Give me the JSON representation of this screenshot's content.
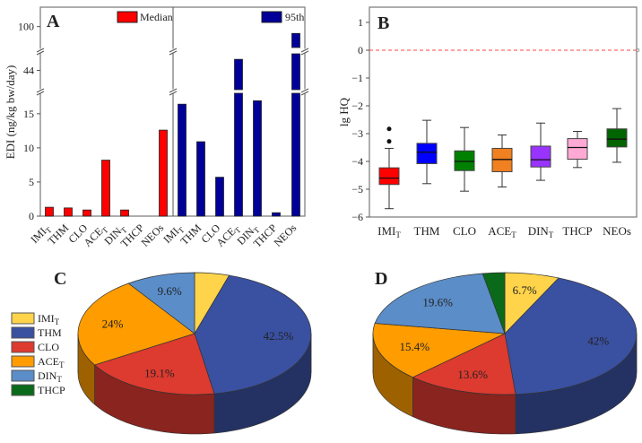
{
  "chart_data": [
    {
      "panel": "A",
      "type": "bar",
      "ylabel": "EDI (ng/kg bw/day)",
      "categories": [
        {
          "name": "IMI",
          "sub": "T"
        },
        {
          "name": "THM",
          "sub": ""
        },
        {
          "name": "CLO",
          "sub": ""
        },
        {
          "name": "ACE",
          "sub": "T"
        },
        {
          "name": "DIN",
          "sub": "T"
        },
        {
          "name": "THCP",
          "sub": ""
        },
        {
          "name": "NEOs",
          "sub": ""
        }
      ],
      "y_ticks": [
        0,
        5,
        10,
        15,
        44,
        100
      ],
      "y_axis_break_segments": [
        [
          0,
          18
        ],
        [
          30,
          56
        ],
        [
          90,
          105
        ]
      ],
      "series": [
        {
          "name": "Median",
          "color": "#ff0000",
          "values": [
            1.3,
            1.2,
            0.9,
            8.2,
            0.9,
            0,
            12.6
          ]
        },
        {
          "name": "95th",
          "color": "#000099",
          "values": [
            16.4,
            10.9,
            5.7,
            52,
            16.9,
            0.5,
            97
          ]
        }
      ],
      "legend": "top-right of each half"
    },
    {
      "panel": "B",
      "type": "box",
      "ylabel": "lg HQ",
      "ylim": [
        -6,
        1.5
      ],
      "y_ticks": [
        1,
        0,
        -1,
        -2,
        -3,
        -4,
        -5,
        -6
      ],
      "reference_line": {
        "y": 0,
        "color": "#ff4444",
        "style": "dashed"
      },
      "categories": [
        {
          "name": "IMI",
          "sub": "T"
        },
        {
          "name": "THM",
          "sub": ""
        },
        {
          "name": "CLO",
          "sub": ""
        },
        {
          "name": "ACE",
          "sub": "T"
        },
        {
          "name": "DIN",
          "sub": "T"
        },
        {
          "name": "THCP",
          "sub": ""
        },
        {
          "name": "NEOs",
          "sub": ""
        }
      ],
      "boxes": [
        {
          "color": "#ff0000",
          "min": -5.7,
          "q1": -4.83,
          "median": -4.6,
          "q3": -4.23,
          "max": -3.53,
          "outliers": [
            -3.28,
            -2.83
          ]
        },
        {
          "color": "#0000ff",
          "min": -4.8,
          "q1": -4.08,
          "median": -3.67,
          "q3": -3.35,
          "max": -2.52,
          "outliers": []
        },
        {
          "color": "#008000",
          "min": -5.07,
          "q1": -4.33,
          "median": -4.0,
          "q3": -3.62,
          "max": -2.78,
          "outliers": []
        },
        {
          "color": "#f08020",
          "min": -4.92,
          "q1": -4.37,
          "median": -3.93,
          "q3": -3.53,
          "max": -3.05,
          "outliers": []
        },
        {
          "color": "#9933ff",
          "min": -4.68,
          "q1": -4.2,
          "median": -3.94,
          "q3": -3.45,
          "max": -2.62,
          "outliers": []
        },
        {
          "color": "#ffaad4",
          "min": -4.22,
          "q1": -3.92,
          "median": -3.5,
          "q3": -3.18,
          "max": -2.92,
          "outliers": []
        },
        {
          "color": "#006400",
          "min": -4.03,
          "q1": -3.48,
          "median": -3.2,
          "q3": -2.83,
          "max": -2.1,
          "outliers": []
        }
      ]
    },
    {
      "panel": "C",
      "type": "pie",
      "slices": [
        {
          "name": "IMI",
          "sub": "T",
          "value": 4.8,
          "label": ""
        },
        {
          "name": "THM",
          "sub": "",
          "value": 42.5,
          "label": "42.5%"
        },
        {
          "name": "CLO",
          "sub": "",
          "value": 19.1,
          "label": "19.1%"
        },
        {
          "name": "ACE",
          "sub": "T",
          "value": 24,
          "label": "24%"
        },
        {
          "name": "DIN",
          "sub": "T",
          "value": 9.6,
          "label": "9.6%"
        },
        {
          "name": "THCP",
          "sub": "",
          "value": 0,
          "label": ""
        }
      ],
      "legend": "left"
    },
    {
      "panel": "D",
      "type": "pie",
      "slices": [
        {
          "name": "IMI",
          "sub": "T",
          "value": 6.7,
          "label": "6.7%"
        },
        {
          "name": "THM",
          "sub": "",
          "value": 42,
          "label": "42%"
        },
        {
          "name": "CLO",
          "sub": "",
          "value": 13.6,
          "label": "13.6%"
        },
        {
          "name": "ACE",
          "sub": "T",
          "value": 15.4,
          "label": "15.4%"
        },
        {
          "name": "DIN",
          "sub": "T",
          "value": 19.6,
          "label": "19.6%"
        },
        {
          "name": "THCP",
          "sub": "",
          "value": 2.7,
          "label": ""
        }
      ]
    }
  ],
  "pie_colors": [
    "#ffd44a",
    "#3a50a0",
    "#dd3a30",
    "#ff9c00",
    "#5b8dc8",
    "#0a6a1a"
  ]
}
